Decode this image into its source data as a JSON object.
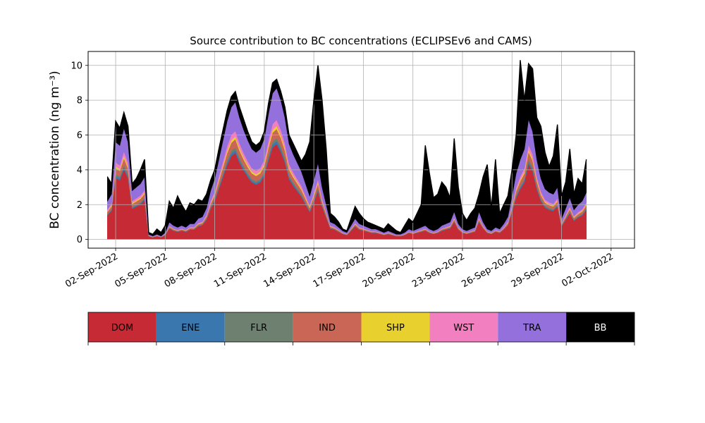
{
  "chart_data": {
    "type": "area",
    "stacked": true,
    "title": "Source contribution to BC concentrations (ECLIPSEv6 and CAMS)",
    "ylabel": "BC concentration (ng m⁻³)",
    "xlabel": "",
    "x_start": "2022-09-01T12:00",
    "x_end": "2022-09-30T12:00",
    "xlim": [
      "2022-08-31T08:00",
      "2022-10-03T10:00"
    ],
    "ylim": [
      -0.5,
      10.8
    ],
    "yticks": [
      0,
      2,
      4,
      6,
      8,
      10
    ],
    "xticks": [
      "02-Sep-2022",
      "05-Sep-2022",
      "08-Sep-2022",
      "11-Sep-2022",
      "14-Sep-2022",
      "17-Sep-2022",
      "20-Sep-2022",
      "23-Sep-2022",
      "26-Sep-2022",
      "29-Sep-2022",
      "02-Oct-2022"
    ],
    "grid": true,
    "legend_position": "below",
    "total_points": [
      [
        "2022-09-01T12:00",
        3.6
      ],
      [
        "2022-09-01T18:00",
        3.2
      ],
      [
        "2022-09-02T00:00",
        6.8
      ],
      [
        "2022-09-02T06:00",
        6.4
      ],
      [
        "2022-09-02T12:00",
        7.3
      ],
      [
        "2022-09-02T18:00",
        6.5
      ],
      [
        "2022-09-03T00:00",
        3.2
      ],
      [
        "2022-09-03T06:00",
        3.5
      ],
      [
        "2022-09-03T12:00",
        4.0
      ],
      [
        "2022-09-03T18:00",
        4.6
      ],
      [
        "2022-09-04T00:00",
        0.4
      ],
      [
        "2022-09-04T06:00",
        0.3
      ],
      [
        "2022-09-04T12:00",
        0.6
      ],
      [
        "2022-09-04T18:00",
        0.4
      ],
      [
        "2022-09-05T00:00",
        0.8
      ],
      [
        "2022-09-05T06:00",
        2.2
      ],
      [
        "2022-09-05T12:00",
        1.8
      ],
      [
        "2022-09-05T18:00",
        2.5
      ],
      [
        "2022-09-06T00:00",
        2.0
      ],
      [
        "2022-09-06T06:00",
        1.6
      ],
      [
        "2022-09-06T12:00",
        2.1
      ],
      [
        "2022-09-06T18:00",
        2.0
      ],
      [
        "2022-09-07T00:00",
        2.3
      ],
      [
        "2022-09-07T06:00",
        2.2
      ],
      [
        "2022-09-07T12:00",
        2.6
      ],
      [
        "2022-09-07T18:00",
        3.4
      ],
      [
        "2022-09-08T00:00",
        4.0
      ],
      [
        "2022-09-08T06:00",
        5.2
      ],
      [
        "2022-09-08T12:00",
        6.3
      ],
      [
        "2022-09-08T18:00",
        7.4
      ],
      [
        "2022-09-09T00:00",
        8.2
      ],
      [
        "2022-09-09T06:00",
        8.5
      ],
      [
        "2022-09-09T12:00",
        7.6
      ],
      [
        "2022-09-09T18:00",
        6.9
      ],
      [
        "2022-09-10T00:00",
        6.2
      ],
      [
        "2022-09-10T06:00",
        5.6
      ],
      [
        "2022-09-10T12:00",
        5.4
      ],
      [
        "2022-09-10T18:00",
        5.6
      ],
      [
        "2022-09-11T00:00",
        6.2
      ],
      [
        "2022-09-11T06:00",
        7.8
      ],
      [
        "2022-09-11T12:00",
        9.0
      ],
      [
        "2022-09-11T18:00",
        9.2
      ],
      [
        "2022-09-12T00:00",
        8.5
      ],
      [
        "2022-09-12T06:00",
        7.6
      ],
      [
        "2022-09-12T12:00",
        6.0
      ],
      [
        "2022-09-12T18:00",
        5.5
      ],
      [
        "2022-09-13T00:00",
        5.0
      ],
      [
        "2022-09-13T06:00",
        4.5
      ],
      [
        "2022-09-13T12:00",
        4.9
      ],
      [
        "2022-09-13T18:00",
        5.6
      ],
      [
        "2022-09-14T00:00",
        8.0
      ],
      [
        "2022-09-14T06:00",
        10.0
      ],
      [
        "2022-09-14T12:00",
        8.0
      ],
      [
        "2022-09-14T18:00",
        5.2
      ],
      [
        "2022-09-15T00:00",
        1.5
      ],
      [
        "2022-09-15T06:00",
        1.3
      ],
      [
        "2022-09-15T12:00",
        1.0
      ],
      [
        "2022-09-15T18:00",
        0.6
      ],
      [
        "2022-09-16T00:00",
        0.5
      ],
      [
        "2022-09-16T06:00",
        1.2
      ],
      [
        "2022-09-16T12:00",
        1.9
      ],
      [
        "2022-09-16T18:00",
        1.5
      ],
      [
        "2022-09-17T00:00",
        1.2
      ],
      [
        "2022-09-17T06:00",
        1.0
      ],
      [
        "2022-09-17T12:00",
        0.9
      ],
      [
        "2022-09-17T18:00",
        0.8
      ],
      [
        "2022-09-18T00:00",
        0.7
      ],
      [
        "2022-09-18T06:00",
        0.6
      ],
      [
        "2022-09-18T12:00",
        0.9
      ],
      [
        "2022-09-18T18:00",
        0.7
      ],
      [
        "2022-09-19T00:00",
        0.5
      ],
      [
        "2022-09-19T06:00",
        0.4
      ],
      [
        "2022-09-19T12:00",
        0.8
      ],
      [
        "2022-09-19T18:00",
        1.2
      ],
      [
        "2022-09-20T00:00",
        1.0
      ],
      [
        "2022-09-20T06:00",
        1.5
      ],
      [
        "2022-09-20T12:00",
        2.0
      ],
      [
        "2022-09-20T18:00",
        5.4
      ],
      [
        "2022-09-21T00:00",
        3.8
      ],
      [
        "2022-09-21T06:00",
        2.4
      ],
      [
        "2022-09-21T12:00",
        2.6
      ],
      [
        "2022-09-21T18:00",
        3.3
      ],
      [
        "2022-09-22T00:00",
        3.0
      ],
      [
        "2022-09-22T06:00",
        2.4
      ],
      [
        "2022-09-22T12:00",
        5.8
      ],
      [
        "2022-09-22T18:00",
        3.0
      ],
      [
        "2022-09-23T00:00",
        1.5
      ],
      [
        "2022-09-23T06:00",
        1.1
      ],
      [
        "2022-09-23T12:00",
        1.5
      ],
      [
        "2022-09-23T18:00",
        1.8
      ],
      [
        "2022-09-24T00:00",
        2.6
      ],
      [
        "2022-09-24T06:00",
        3.6
      ],
      [
        "2022-09-24T12:00",
        4.3
      ],
      [
        "2022-09-24T18:00",
        1.8
      ],
      [
        "2022-09-25T00:00",
        4.6
      ],
      [
        "2022-09-25T06:00",
        1.5
      ],
      [
        "2022-09-25T12:00",
        2.0
      ],
      [
        "2022-09-25T18:00",
        2.5
      ],
      [
        "2022-09-26T00:00",
        4.0
      ],
      [
        "2022-09-26T06:00",
        6.0
      ],
      [
        "2022-09-26T12:00",
        10.3
      ],
      [
        "2022-09-26T18:00",
        8.0
      ],
      [
        "2022-09-27T00:00",
        10.1
      ],
      [
        "2022-09-27T06:00",
        9.8
      ],
      [
        "2022-09-27T12:00",
        7.0
      ],
      [
        "2022-09-27T18:00",
        6.5
      ],
      [
        "2022-09-28T00:00",
        5.0
      ],
      [
        "2022-09-28T06:00",
        4.2
      ],
      [
        "2022-09-28T12:00",
        4.8
      ],
      [
        "2022-09-28T18:00",
        6.6
      ],
      [
        "2022-09-29T00:00",
        2.5
      ],
      [
        "2022-09-29T06:00",
        3.3
      ],
      [
        "2022-09-29T12:00",
        5.2
      ],
      [
        "2022-09-29T18:00",
        2.6
      ],
      [
        "2022-09-30T00:00",
        3.5
      ],
      [
        "2022-09-30T06:00",
        3.2
      ],
      [
        "2022-09-30T12:00",
        4.6
      ]
    ],
    "non_bb_points": [
      [
        "2022-09-01T12:00",
        2.2
      ],
      [
        "2022-09-01T18:00",
        2.6
      ],
      [
        "2022-09-02T00:00",
        5.6
      ],
      [
        "2022-09-02T06:00",
        5.4
      ],
      [
        "2022-09-02T12:00",
        6.4
      ],
      [
        "2022-09-02T18:00",
        5.6
      ],
      [
        "2022-09-03T00:00",
        2.8
      ],
      [
        "2022-09-03T06:00",
        3.0
      ],
      [
        "2022-09-03T12:00",
        3.2
      ],
      [
        "2022-09-03T18:00",
        3.6
      ],
      [
        "2022-09-04T00:00",
        0.3
      ],
      [
        "2022-09-04T06:00",
        0.2
      ],
      [
        "2022-09-04T12:00",
        0.3
      ],
      [
        "2022-09-04T18:00",
        0.2
      ],
      [
        "2022-09-05T00:00",
        0.4
      ],
      [
        "2022-09-05T06:00",
        1.0
      ],
      [
        "2022-09-05T12:00",
        0.8
      ],
      [
        "2022-09-05T18:00",
        0.7
      ],
      [
        "2022-09-06T00:00",
        0.8
      ],
      [
        "2022-09-06T06:00",
        0.7
      ],
      [
        "2022-09-06T12:00",
        0.9
      ],
      [
        "2022-09-06T18:00",
        0.9
      ],
      [
        "2022-09-07T00:00",
        1.2
      ],
      [
        "2022-09-07T06:00",
        1.3
      ],
      [
        "2022-09-07T12:00",
        1.8
      ],
      [
        "2022-09-07T18:00",
        2.8
      ],
      [
        "2022-09-08T00:00",
        3.5
      ],
      [
        "2022-09-08T06:00",
        4.6
      ],
      [
        "2022-09-08T12:00",
        5.7
      ],
      [
        "2022-09-08T18:00",
        6.8
      ],
      [
        "2022-09-09T00:00",
        7.6
      ],
      [
        "2022-09-09T06:00",
        7.9
      ],
      [
        "2022-09-09T12:00",
        7.0
      ],
      [
        "2022-09-09T18:00",
        6.3
      ],
      [
        "2022-09-10T00:00",
        5.7
      ],
      [
        "2022-09-10T06:00",
        5.2
      ],
      [
        "2022-09-10T12:00",
        5.0
      ],
      [
        "2022-09-10T18:00",
        5.2
      ],
      [
        "2022-09-11T00:00",
        5.8
      ],
      [
        "2022-09-11T06:00",
        7.2
      ],
      [
        "2022-09-11T12:00",
        8.4
      ],
      [
        "2022-09-11T18:00",
        8.7
      ],
      [
        "2022-09-12T00:00",
        8.0
      ],
      [
        "2022-09-12T06:00",
        7.0
      ],
      [
        "2022-09-12T12:00",
        5.5
      ],
      [
        "2022-09-12T18:00",
        4.9
      ],
      [
        "2022-09-13T00:00",
        4.4
      ],
      [
        "2022-09-13T06:00",
        3.9
      ],
      [
        "2022-09-13T12:00",
        3.2
      ],
      [
        "2022-09-13T18:00",
        2.5
      ],
      [
        "2022-09-14T00:00",
        3.4
      ],
      [
        "2022-09-14T06:00",
        4.4
      ],
      [
        "2022-09-14T12:00",
        3.0
      ],
      [
        "2022-09-14T18:00",
        2.0
      ],
      [
        "2022-09-15T00:00",
        1.0
      ],
      [
        "2022-09-15T06:00",
        0.9
      ],
      [
        "2022-09-15T12:00",
        0.7
      ],
      [
        "2022-09-15T18:00",
        0.5
      ],
      [
        "2022-09-16T00:00",
        0.4
      ],
      [
        "2022-09-16T06:00",
        0.8
      ],
      [
        "2022-09-16T12:00",
        1.2
      ],
      [
        "2022-09-16T18:00",
        0.9
      ],
      [
        "2022-09-17T00:00",
        0.8
      ],
      [
        "2022-09-17T06:00",
        0.7
      ],
      [
        "2022-09-17T12:00",
        0.6
      ],
      [
        "2022-09-17T18:00",
        0.6
      ],
      [
        "2022-09-18T00:00",
        0.5
      ],
      [
        "2022-09-18T06:00",
        0.4
      ],
      [
        "2022-09-18T12:00",
        0.5
      ],
      [
        "2022-09-18T18:00",
        0.4
      ],
      [
        "2022-09-19T00:00",
        0.3
      ],
      [
        "2022-09-19T06:00",
        0.3
      ],
      [
        "2022-09-19T12:00",
        0.4
      ],
      [
        "2022-09-19T18:00",
        0.6
      ],
      [
        "2022-09-20T00:00",
        0.5
      ],
      [
        "2022-09-20T06:00",
        0.6
      ],
      [
        "2022-09-20T12:00",
        0.7
      ],
      [
        "2022-09-20T18:00",
        0.8
      ],
      [
        "2022-09-21T00:00",
        0.6
      ],
      [
        "2022-09-21T06:00",
        0.5
      ],
      [
        "2022-09-21T12:00",
        0.6
      ],
      [
        "2022-09-21T18:00",
        0.8
      ],
      [
        "2022-09-22T00:00",
        0.9
      ],
      [
        "2022-09-22T06:00",
        1.0
      ],
      [
        "2022-09-22T12:00",
        1.6
      ],
      [
        "2022-09-22T18:00",
        0.9
      ],
      [
        "2022-09-23T00:00",
        0.6
      ],
      [
        "2022-09-23T06:00",
        0.5
      ],
      [
        "2022-09-23T12:00",
        0.6
      ],
      [
        "2022-09-23T18:00",
        0.7
      ],
      [
        "2022-09-24T00:00",
        1.6
      ],
      [
        "2022-09-24T06:00",
        1.0
      ],
      [
        "2022-09-24T12:00",
        0.6
      ],
      [
        "2022-09-24T18:00",
        0.5
      ],
      [
        "2022-09-25T00:00",
        0.7
      ],
      [
        "2022-09-25T06:00",
        0.6
      ],
      [
        "2022-09-25T12:00",
        0.9
      ],
      [
        "2022-09-25T18:00",
        1.3
      ],
      [
        "2022-09-26T00:00",
        2.5
      ],
      [
        "2022-09-26T06:00",
        3.8
      ],
      [
        "2022-09-26T12:00",
        4.6
      ],
      [
        "2022-09-26T18:00",
        5.2
      ],
      [
        "2022-09-27T00:00",
        6.9
      ],
      [
        "2022-09-27T06:00",
        6.2
      ],
      [
        "2022-09-27T12:00",
        4.6
      ],
      [
        "2022-09-27T18:00",
        3.5
      ],
      [
        "2022-09-28T00:00",
        2.9
      ],
      [
        "2022-09-28T06:00",
        2.7
      ],
      [
        "2022-09-28T12:00",
        2.6
      ],
      [
        "2022-09-28T18:00",
        3.0
      ],
      [
        "2022-09-29T00:00",
        1.2
      ],
      [
        "2022-09-29T06:00",
        1.8
      ],
      [
        "2022-09-29T12:00",
        2.4
      ],
      [
        "2022-09-29T18:00",
        1.7
      ],
      [
        "2022-09-30T00:00",
        2.0
      ],
      [
        "2022-09-30T06:00",
        2.2
      ],
      [
        "2022-09-30T12:00",
        2.7
      ]
    ],
    "series": [
      {
        "name": "DOM",
        "color": "#c62a35",
        "share": 0.63
      },
      {
        "name": "ENE",
        "color": "#3a77ae",
        "share": 0.02
      },
      {
        "name": "FLR",
        "color": "#6e8070",
        "share": 0.02
      },
      {
        "name": "IND",
        "color": "#c96656",
        "share": 0.06
      },
      {
        "name": "SHP",
        "color": "#e8d02e",
        "share": 0.02
      },
      {
        "name": "WST",
        "color": "#f27fbf",
        "share": 0.04
      },
      {
        "name": "TRA",
        "color": "#9370db",
        "share": 0.21
      },
      {
        "name": "BB",
        "color": "#000000",
        "share": null
      }
    ],
    "legend": [
      {
        "label": "DOM",
        "color": "#c62a35",
        "text_color": "#000000"
      },
      {
        "label": "ENE",
        "color": "#3a77ae",
        "text_color": "#000000"
      },
      {
        "label": "FLR",
        "color": "#6e8070",
        "text_color": "#000000"
      },
      {
        "label": "IND",
        "color": "#c96656",
        "text_color": "#000000"
      },
      {
        "label": "SHP",
        "color": "#e8d02e",
        "text_color": "#000000"
      },
      {
        "label": "WST",
        "color": "#f27fbf",
        "text_color": "#000000"
      },
      {
        "label": "TRA",
        "color": "#9370db",
        "text_color": "#000000"
      },
      {
        "label": "BB",
        "color": "#000000",
        "text_color": "#ffffff"
      }
    ]
  }
}
